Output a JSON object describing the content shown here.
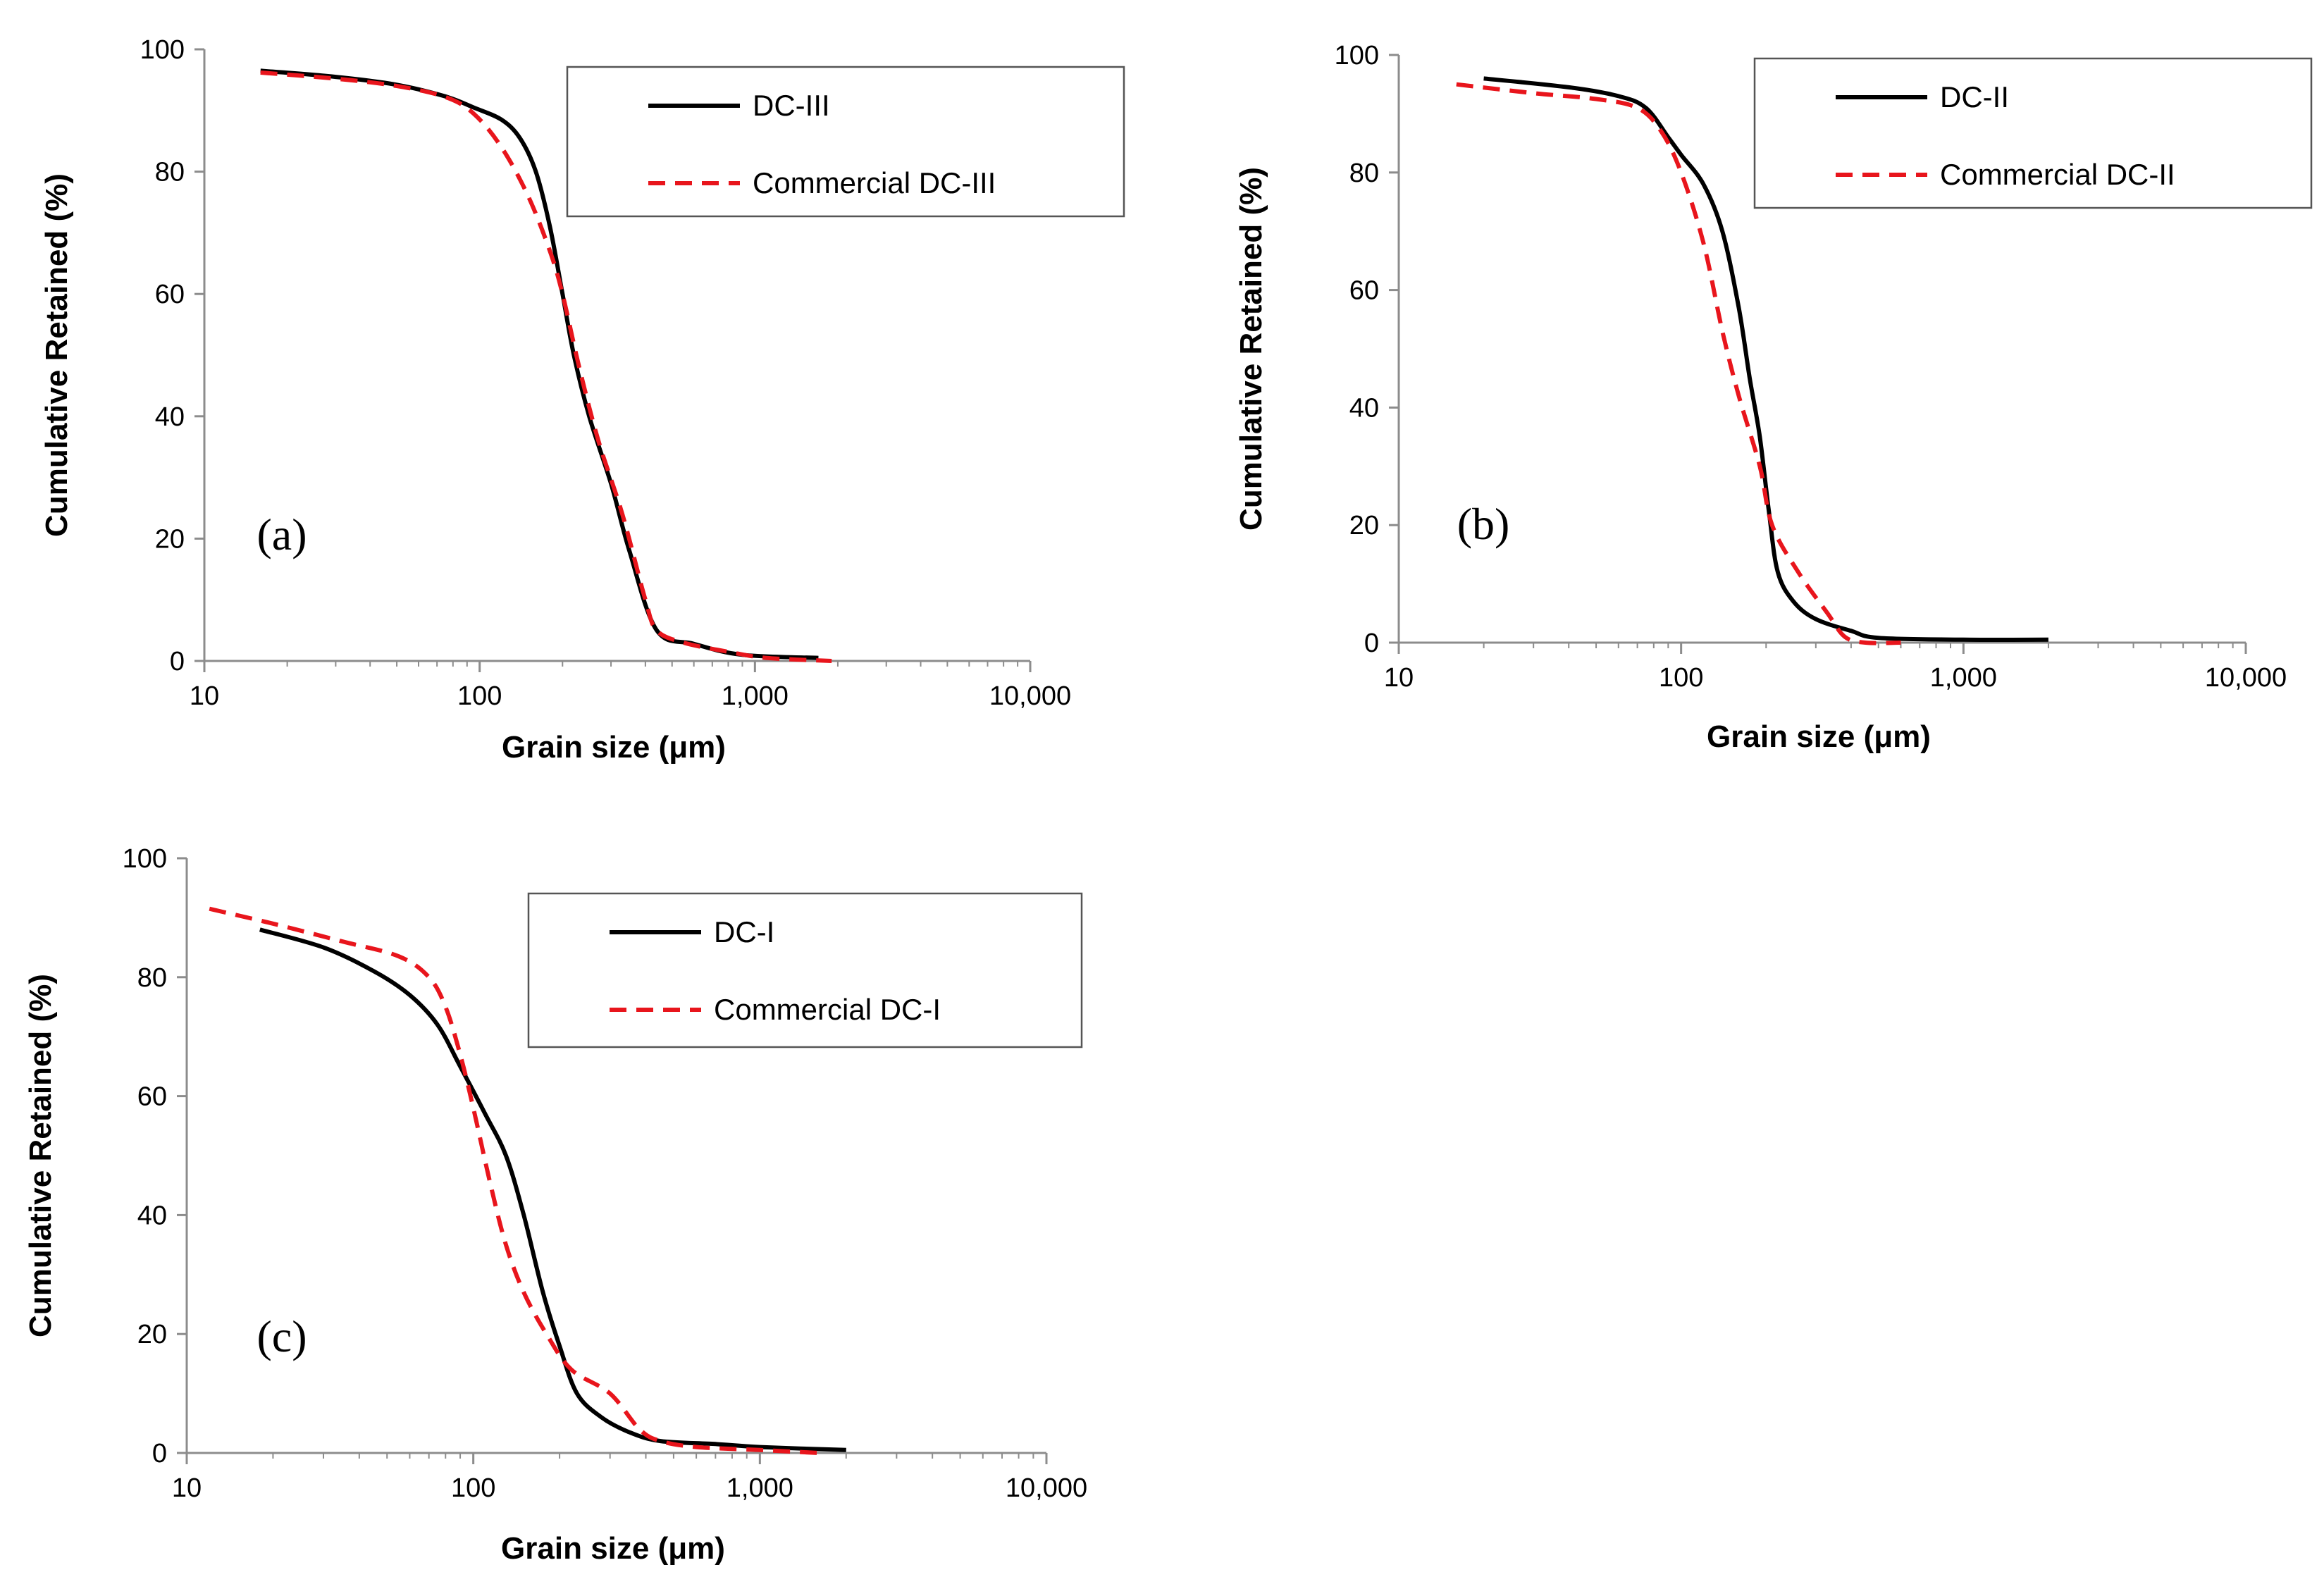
{
  "chart_data": [
    {
      "type": "line",
      "panel_label": "(a)",
      "xlabel": "Grain size (μm)",
      "ylabel": "Cumulative Retained (%)",
      "xscale": "log",
      "xlim": [
        10,
        10000
      ],
      "ylim": [
        0,
        100
      ],
      "x_ticks": [
        "10",
        "100",
        "1,000",
        "10,000"
      ],
      "y_ticks": [
        "0",
        "20",
        "40",
        "60",
        "80",
        "100"
      ],
      "legend_position": "top-right",
      "series": [
        {
          "name": "DC-III",
          "color": "#000000",
          "style": "solid",
          "points": [
            [
              16,
              96.5
            ],
            [
              30,
              95.5
            ],
            [
              50,
              94.2
            ],
            [
              75,
              92.3
            ],
            [
              95,
              90.5
            ],
            [
              120,
              88.5
            ],
            [
              140,
              85.5
            ],
            [
              160,
              80
            ],
            [
              180,
              71
            ],
            [
              200,
              60
            ],
            [
              220,
              50
            ],
            [
              250,
              40
            ],
            [
              300,
              29
            ],
            [
              350,
              18
            ],
            [
              440,
              5
            ],
            [
              600,
              2.8
            ],
            [
              900,
              1
            ],
            [
              1700,
              0.5
            ]
          ]
        },
        {
          "name": "Commercial DC-III",
          "color": "#e8151c",
          "style": "dashed",
          "points": [
            [
              16,
              96.2
            ],
            [
              30,
              95.2
            ],
            [
              50,
              94
            ],
            [
              75,
              92.2
            ],
            [
              95,
              89.5
            ],
            [
              120,
              84
            ],
            [
              150,
              76
            ],
            [
              180,
              67
            ],
            [
              200,
              60
            ],
            [
              230,
              48
            ],
            [
              270,
              36
            ],
            [
              330,
              24
            ],
            [
              400,
              10
            ],
            [
              440,
              5
            ],
            [
              550,
              3
            ],
            [
              800,
              1.5
            ],
            [
              1100,
              0.5
            ],
            [
              1900,
              0
            ]
          ]
        }
      ]
    },
    {
      "type": "line",
      "panel_label": "(b)",
      "xlabel": "Grain size (μm)",
      "ylabel": "Cumulative Retained (%)",
      "xscale": "log",
      "xlim": [
        10,
        10000
      ],
      "ylim": [
        0,
        100
      ],
      "x_ticks": [
        "10",
        "100",
        "1,000",
        "10,000"
      ],
      "y_ticks": [
        "0",
        "20",
        "40",
        "60",
        "80",
        "100"
      ],
      "legend_position": "top-right",
      "series": [
        {
          "name": "DC-II",
          "color": "#000000",
          "style": "solid",
          "points": [
            [
              20,
              96
            ],
            [
              40,
              94.5
            ],
            [
              60,
              93
            ],
            [
              75,
              91
            ],
            [
              90,
              86
            ],
            [
              100,
              83
            ],
            [
              120,
              78
            ],
            [
              140,
              70
            ],
            [
              160,
              57
            ],
            [
              175,
              45
            ],
            [
              190,
              35
            ],
            [
              205,
              22
            ],
            [
              220,
              12
            ],
            [
              250,
              7
            ],
            [
              300,
              4
            ],
            [
              400,
              2
            ],
            [
              500,
              0.8
            ],
            [
              1000,
              0.5
            ],
            [
              2000,
              0.5
            ]
          ]
        },
        {
          "name": "Commercial DC-II",
          "color": "#e8151c",
          "style": "dashed",
          "points": [
            [
              16,
              95
            ],
            [
              30,
              93.5
            ],
            [
              50,
              92.5
            ],
            [
              70,
              91
            ],
            [
              85,
              87
            ],
            [
              100,
              80
            ],
            [
              120,
              68
            ],
            [
              140,
              53
            ],
            [
              160,
              42
            ],
            [
              190,
              30
            ],
            [
              210,
              20
            ],
            [
              260,
              12
            ],
            [
              330,
              5
            ],
            [
              380,
              1
            ],
            [
              450,
              0
            ],
            [
              600,
              0
            ]
          ]
        }
      ]
    },
    {
      "type": "line",
      "panel_label": "(c)",
      "xlabel": "Grain size (μm)",
      "ylabel": "Cumulative Retained (%)",
      "xscale": "log",
      "xlim": [
        10,
        10000
      ],
      "ylim": [
        0,
        100
      ],
      "x_ticks": [
        "10",
        "100",
        "1,000",
        "10,000"
      ],
      "y_ticks": [
        "0",
        "20",
        "40",
        "60",
        "80",
        "100"
      ],
      "legend_position": "top-right",
      "series": [
        {
          "name": "DC-I",
          "color": "#000000",
          "style": "solid",
          "points": [
            [
              18,
              88
            ],
            [
              30,
              85
            ],
            [
              45,
              81
            ],
            [
              60,
              77
            ],
            [
              75,
              72
            ],
            [
              90,
              65
            ],
            [
              110,
              57
            ],
            [
              130,
              50
            ],
            [
              150,
              40
            ],
            [
              175,
              27
            ],
            [
              200,
              18
            ],
            [
              230,
              10
            ],
            [
              280,
              6
            ],
            [
              350,
              3.5
            ],
            [
              450,
              2
            ],
            [
              700,
              1.5
            ],
            [
              1000,
              1
            ],
            [
              2000,
              0.5
            ]
          ]
        },
        {
          "name": "Commercial DC-I",
          "color": "#e8151c",
          "style": "dashed",
          "points": [
            [
              12,
              91.5
            ],
            [
              20,
              89
            ],
            [
              35,
              86
            ],
            [
              55,
              83.5
            ],
            [
              70,
              80
            ],
            [
              80,
              75
            ],
            [
              90,
              67
            ],
            [
              100,
              58
            ],
            [
              115,
              45
            ],
            [
              130,
              35
            ],
            [
              150,
              27
            ],
            [
              180,
              20
            ],
            [
              220,
              14
            ],
            [
              300,
              10
            ],
            [
              380,
              4
            ],
            [
              450,
              2
            ],
            [
              600,
              1
            ],
            [
              1000,
              0.5
            ],
            [
              1600,
              0
            ]
          ]
        }
      ]
    }
  ]
}
